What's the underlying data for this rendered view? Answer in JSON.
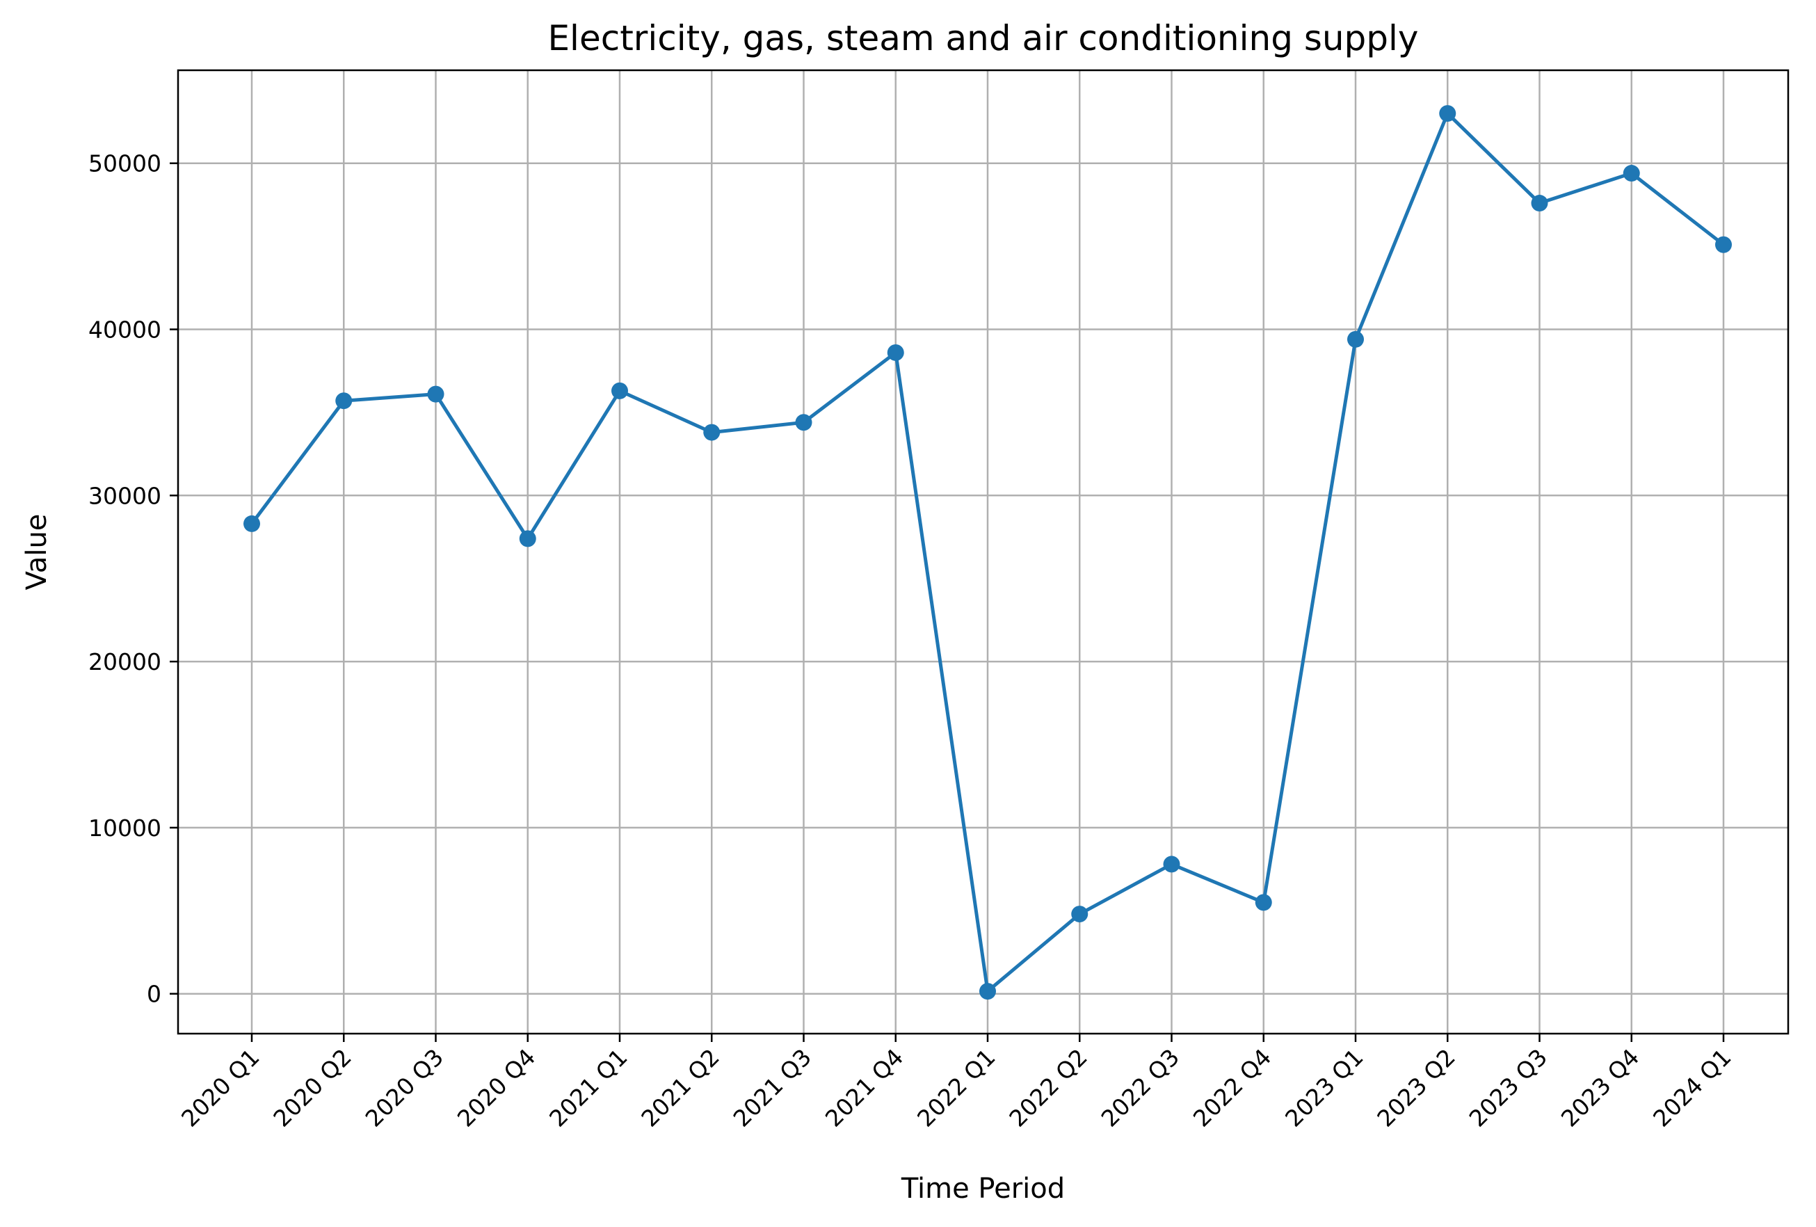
{
  "chart_data": {
    "type": "line",
    "title": "Electricity, gas, steam and air conditioning supply",
    "xlabel": "Time Period",
    "ylabel": "Value",
    "categories": [
      "2020 Q1",
      "2020 Q2",
      "2020 Q3",
      "2020 Q4",
      "2021 Q1",
      "2021 Q2",
      "2021 Q3",
      "2021 Q4",
      "2022 Q1",
      "2022 Q2",
      "2022 Q3",
      "2022 Q4",
      "2023 Q1",
      "2023 Q2",
      "2023 Q3",
      "2023 Q4",
      "2024 Q1"
    ],
    "series": [
      {
        "values": [
          28300,
          35700,
          36100,
          27400,
          36300,
          33800,
          34400,
          38600,
          150,
          4800,
          7800,
          5500,
          39400,
          53000,
          47600,
          49400,
          45100
        ],
        "color": "#1f77b4",
        "marker": "circle"
      }
    ],
    "ylim": [
      -2400,
      55600
    ],
    "yticks": [
      0,
      10000,
      20000,
      30000,
      40000,
      50000
    ],
    "grid": true,
    "legend": "none"
  }
}
